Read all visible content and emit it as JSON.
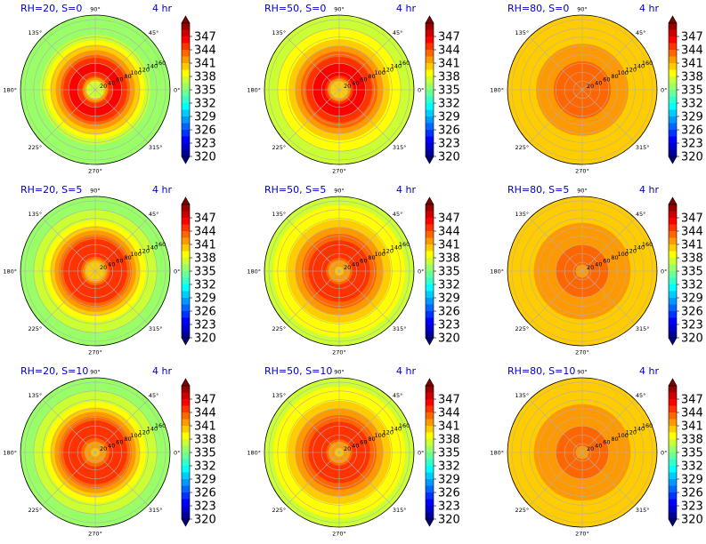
{
  "chart_data": {
    "type": "heatmap",
    "layout": {
      "rows": 3,
      "cols": 3
    },
    "colorbar": {
      "min": 320,
      "max": 350,
      "ticks": [
        "347",
        "344",
        "341",
        "338",
        "335",
        "332",
        "329",
        "326",
        "323",
        "320"
      ],
      "colormap": "jet"
    },
    "angular_ticks": [
      "90°",
      "45°",
      "0°",
      "315°",
      "270°",
      "225°",
      "180°",
      "135°"
    ],
    "radial_ticks": [
      "20",
      "40",
      "60",
      "80",
      "100",
      "120",
      "140",
      "160"
    ],
    "r_max": 170,
    "panels": [
      {
        "title": "RH=20, S=0",
        "time": "4 hr",
        "profile": [
          [
            0,
            336.5
          ],
          [
            16,
            337
          ],
          [
            30,
            344.5
          ],
          [
            45,
            346
          ],
          [
            60,
            345.5
          ],
          [
            75,
            343.5
          ],
          [
            90,
            341
          ],
          [
            105,
            339
          ],
          [
            115,
            337.5
          ],
          [
            130,
            336
          ],
          [
            170,
            335
          ]
        ]
      },
      {
        "title": "RH=50, S=0",
        "time": "4 hr",
        "profile": [
          [
            0,
            339.5
          ],
          [
            20,
            340.5
          ],
          [
            32,
            345.5
          ],
          [
            45,
            346
          ],
          [
            60,
            345.5
          ],
          [
            75,
            344
          ],
          [
            90,
            342
          ],
          [
            105,
            340.5
          ],
          [
            120,
            339
          ],
          [
            140,
            338
          ],
          [
            170,
            337.5
          ]
        ]
      },
      {
        "title": "RH=80, S=0",
        "time": "4 hr",
        "profile": [
          [
            0,
            342.5
          ],
          [
            30,
            343.5
          ],
          [
            50,
            343.5
          ],
          [
            65,
            342.5
          ],
          [
            85,
            341.5
          ],
          [
            105,
            341
          ],
          [
            125,
            340.5
          ],
          [
            145,
            340
          ],
          [
            170,
            339.5
          ]
        ]
      },
      {
        "title": "RH=20, S=5",
        "time": "4 hr",
        "profile": [
          [
            0,
            339.5
          ],
          [
            20,
            340.5
          ],
          [
            35,
            345
          ],
          [
            50,
            345.5
          ],
          [
            65,
            345
          ],
          [
            80,
            343
          ],
          [
            95,
            340.5
          ],
          [
            110,
            338.5
          ],
          [
            125,
            337
          ],
          [
            170,
            335.5
          ]
        ]
      },
      {
        "title": "RH=50, S=5",
        "time": "4 hr",
        "profile": [
          [
            0,
            340.5
          ],
          [
            20,
            341.5
          ],
          [
            35,
            345
          ],
          [
            50,
            345.5
          ],
          [
            65,
            344.5
          ],
          [
            80,
            343
          ],
          [
            95,
            341.5
          ],
          [
            110,
            340
          ],
          [
            130,
            338.5
          ],
          [
            170,
            337.5
          ]
        ]
      },
      {
        "title": "RH=80, S=5",
        "time": "4 hr",
        "profile": [
          [
            0,
            342
          ],
          [
            30,
            343
          ],
          [
            50,
            343
          ],
          [
            70,
            342
          ],
          [
            90,
            341.5
          ],
          [
            110,
            341
          ],
          [
            130,
            340.5
          ],
          [
            150,
            340
          ],
          [
            170,
            339.5
          ]
        ]
      },
      {
        "title": "RH=20, S=10",
        "time": "4 hr",
        "profile": [
          [
            0,
            340.5
          ],
          [
            22,
            341.5
          ],
          [
            35,
            345
          ],
          [
            50,
            345.5
          ],
          [
            65,
            345
          ],
          [
            80,
            343
          ],
          [
            95,
            340.5
          ],
          [
            110,
            338.5
          ],
          [
            125,
            337
          ],
          [
            170,
            335.5
          ]
        ]
      },
      {
        "title": "RH=50, S=10",
        "time": "4 hr",
        "profile": [
          [
            0,
            340.5
          ],
          [
            20,
            341.5
          ],
          [
            35,
            345
          ],
          [
            50,
            345.5
          ],
          [
            65,
            344.5
          ],
          [
            80,
            343
          ],
          [
            95,
            341.5
          ],
          [
            110,
            340
          ],
          [
            130,
            338.5
          ],
          [
            170,
            337.5
          ]
        ]
      },
      {
        "title": "RH=80, S=10",
        "time": "4 hr",
        "profile": [
          [
            0,
            342
          ],
          [
            30,
            343
          ],
          [
            50,
            343
          ],
          [
            70,
            342
          ],
          [
            90,
            341.5
          ],
          [
            110,
            341
          ],
          [
            130,
            340.5
          ],
          [
            150,
            340
          ],
          [
            170,
            339.5
          ]
        ]
      }
    ]
  }
}
